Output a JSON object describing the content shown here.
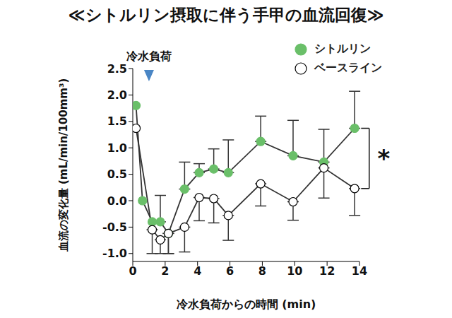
{
  "chart_data": {
    "type": "line",
    "title": "≪シトルリン摂取に伴う手甲の血流回復≫",
    "xlabel": "冷水負荷からの時間 (min)",
    "ylabel": "血流の変化量 (mL/min/100mm³)",
    "xlim": [
      0,
      14
    ],
    "xticks": [
      0,
      2,
      4,
      6,
      8,
      10,
      12,
      14
    ],
    "ylim": [
      -1.15,
      2.5
    ],
    "yticks": [
      {
        "value": -1,
        "label": "-1.0"
      },
      -0.5,
      {
        "value": 0,
        "label": "0.0"
      },
      0.5,
      {
        "value": 1,
        "label": "1.0"
      },
      1.5,
      {
        "value": 2,
        "label": "2.0"
      },
      2.5
    ],
    "grid": false,
    "legend": "upper right",
    "annotations": [
      {
        "text": "冷水負荷",
        "x": 1
      },
      {
        "text": "*"
      }
    ],
    "series": [
      {
        "name": "シトルリン",
        "color": "#6abf69",
        "marker": "circle",
        "x": [
          0.2,
          0.6,
          1.2,
          1.7,
          2.2,
          3.2,
          4.1,
          5.0,
          5.9,
          7.9,
          9.9,
          11.8,
          13.7
        ],
        "values": [
          1.8,
          0.0,
          -0.4,
          -0.4,
          -0.62,
          0.22,
          0.53,
          0.6,
          0.53,
          1.12,
          0.85,
          0.73,
          1.37
        ],
        "error_up": [
          null,
          null,
          null,
          0.5,
          null,
          0.51,
          0.17,
          0.38,
          0.62,
          0.48,
          0.67,
          0.62,
          0.7
        ],
        "error_down": [
          null,
          null,
          null,
          null,
          0.38,
          null,
          null,
          null,
          null,
          null,
          null,
          null,
          null
        ]
      },
      {
        "name": "ベースライン",
        "color": "#000000",
        "marker": "open circle",
        "x": [
          0.2,
          1.2,
          1.7,
          2.2,
          3.2,
          4.1,
          5.0,
          5.9,
          7.9,
          9.9,
          11.8,
          13.7
        ],
        "values": [
          1.37,
          -0.55,
          -0.74,
          -0.62,
          -0.5,
          0.06,
          0.04,
          -0.28,
          0.32,
          -0.02,
          0.62,
          0.23
        ],
        "error_down": [
          null,
          0.45,
          0.26,
          0.38,
          0.47,
          0.44,
          0.46,
          0.47,
          0.42,
          0.35,
          0.57,
          0.51
        ]
      }
    ]
  }
}
